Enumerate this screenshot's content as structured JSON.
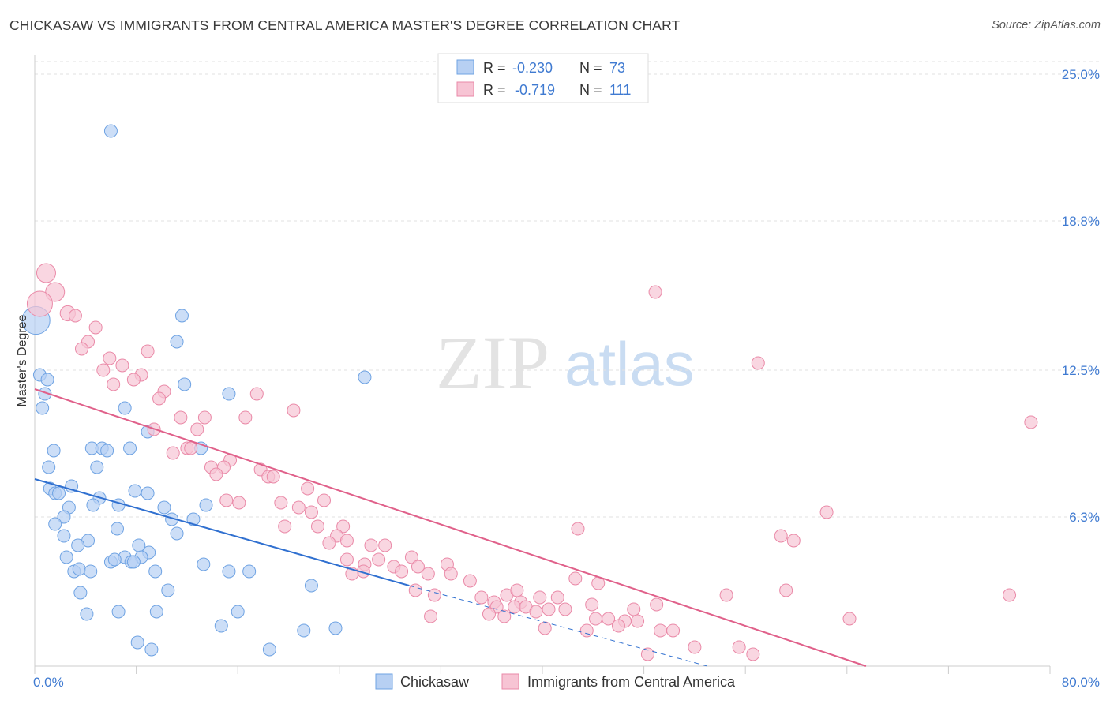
{
  "title": "CHICKASAW VS IMMIGRANTS FROM CENTRAL AMERICA MASTER'S DEGREE CORRELATION CHART",
  "source": "Source: ZipAtlas.com",
  "watermark": {
    "zip": "ZIP",
    "atlas": "atlas"
  },
  "legend": {
    "r_label": "R =",
    "n_label": "N =",
    "entries": [
      {
        "r": "-0.230",
        "n": "73"
      },
      {
        "r": "-0.719",
        "n": "111"
      }
    ]
  },
  "chart_data": {
    "type": "scatter",
    "title": "CHICKASAW VS IMMIGRANTS FROM CENTRAL AMERICA MASTER'S DEGREE CORRELATION CHART",
    "xlabel": "",
    "ylabel": "Master's Degree",
    "xlim": [
      0,
      80
    ],
    "ylim": [
      0,
      25.8
    ],
    "x_tick_labels": [
      "0.0%",
      "80.0%"
    ],
    "y_ticks": [
      6.3,
      12.5,
      18.8,
      25.0
    ],
    "y_tick_labels": [
      "6.3%",
      "12.5%",
      "18.8%",
      "25.0%"
    ],
    "grid": true,
    "legend_position": "top-center",
    "colors": {
      "blue": "#6fa3e3",
      "blue_fill": "#b7d0f3",
      "blue_line": "#3070d0",
      "pink": "#ea8aa8",
      "pink_fill": "#f7c4d4",
      "pink_line": "#e0608a"
    },
    "series": [
      {
        "name": "Chickasaw",
        "color": "#6fa3e3",
        "trend": {
          "x": [
            0,
            29.5
          ],
          "y": [
            7.9,
            3.4
          ],
          "dashed_to": [
            53,
            0
          ]
        },
        "points": [
          [
            0.1,
            14.6,
            2.2
          ],
          [
            6.0,
            22.6,
            1
          ],
          [
            11.6,
            14.8,
            1
          ],
          [
            11.2,
            13.7,
            1
          ],
          [
            0.4,
            12.3,
            1
          ],
          [
            1.0,
            12.1,
            1
          ],
          [
            0.8,
            11.5,
            1
          ],
          [
            26.0,
            12.2,
            1
          ],
          [
            11.8,
            11.9,
            1
          ],
          [
            15.3,
            11.5,
            1
          ],
          [
            0.6,
            10.9,
            1
          ],
          [
            7.1,
            10.9,
            1
          ],
          [
            8.9,
            9.9,
            1
          ],
          [
            1.5,
            9.1,
            1
          ],
          [
            4.5,
            9.2,
            1
          ],
          [
            5.3,
            9.2,
            1
          ],
          [
            5.7,
            9.1,
            1
          ],
          [
            7.5,
            9.2,
            1
          ],
          [
            13.1,
            9.2,
            1
          ],
          [
            1.1,
            8.4,
            1
          ],
          [
            4.9,
            8.4,
            1
          ],
          [
            1.2,
            7.5,
            1
          ],
          [
            1.6,
            7.3,
            1
          ],
          [
            1.9,
            7.3,
            1
          ],
          [
            2.9,
            7.6,
            1
          ],
          [
            7.9,
            7.4,
            1
          ],
          [
            8.9,
            7.3,
            1
          ],
          [
            5.1,
            7.1,
            1
          ],
          [
            4.6,
            6.8,
            1
          ],
          [
            6.6,
            6.8,
            1
          ],
          [
            2.7,
            6.7,
            1
          ],
          [
            13.5,
            6.8,
            1
          ],
          [
            10.2,
            6.7,
            1
          ],
          [
            2.3,
            6.3,
            1
          ],
          [
            1.6,
            6.0,
            1
          ],
          [
            10.8,
            6.2,
            1
          ],
          [
            12.5,
            6.2,
            1
          ],
          [
            6.5,
            5.8,
            1
          ],
          [
            2.3,
            5.5,
            1
          ],
          [
            4.2,
            5.3,
            1
          ],
          [
            8.2,
            5.1,
            1
          ],
          [
            11.2,
            5.6,
            1
          ],
          [
            3.4,
            5.1,
            1
          ],
          [
            9.0,
            4.8,
            1
          ],
          [
            2.5,
            4.6,
            1
          ],
          [
            6.0,
            4.4,
            1
          ],
          [
            7.1,
            4.6,
            1
          ],
          [
            8.4,
            4.6,
            1
          ],
          [
            6.3,
            4.5,
            1
          ],
          [
            7.6,
            4.4,
            1
          ],
          [
            7.8,
            4.4,
            1
          ],
          [
            13.3,
            4.3,
            1
          ],
          [
            3.1,
            4.0,
            1
          ],
          [
            3.5,
            4.1,
            1
          ],
          [
            4.4,
            4.0,
            1
          ],
          [
            9.5,
            4.0,
            1
          ],
          [
            15.3,
            4.0,
            1
          ],
          [
            16.9,
            4.0,
            1
          ],
          [
            21.8,
            3.4,
            1
          ],
          [
            3.6,
            3.1,
            1
          ],
          [
            10.5,
            3.2,
            1
          ],
          [
            6.6,
            2.3,
            1
          ],
          [
            9.6,
            2.3,
            1
          ],
          [
            16.0,
            2.3,
            1
          ],
          [
            4.1,
            2.2,
            1
          ],
          [
            14.7,
            1.7,
            1
          ],
          [
            21.2,
            1.5,
            1
          ],
          [
            23.7,
            1.6,
            1
          ],
          [
            8.1,
            1.0,
            1
          ],
          [
            9.2,
            0.7,
            1
          ],
          [
            18.5,
            0.7,
            1
          ]
        ]
      },
      {
        "name": "Immigrants from Central America",
        "color": "#ea8aa8",
        "trend": {
          "x": [
            0,
            65.5
          ],
          "y": [
            11.7,
            0
          ]
        },
        "points": [
          [
            0.9,
            16.6,
            1.5
          ],
          [
            1.6,
            15.8,
            1.5
          ],
          [
            0.4,
            15.3,
            2
          ],
          [
            2.6,
            14.9,
            1.2
          ],
          [
            3.2,
            14.8,
            1
          ],
          [
            48.9,
            15.8,
            1
          ],
          [
            4.8,
            14.3,
            1
          ],
          [
            4.2,
            13.7,
            1
          ],
          [
            3.7,
            13.4,
            1
          ],
          [
            8.9,
            13.3,
            1
          ],
          [
            5.9,
            13.0,
            1
          ],
          [
            57.0,
            12.8,
            1
          ],
          [
            6.9,
            12.7,
            1
          ],
          [
            5.4,
            12.5,
            1
          ],
          [
            8.4,
            12.3,
            1
          ],
          [
            7.8,
            12.1,
            1
          ],
          [
            6.2,
            11.9,
            1
          ],
          [
            10.2,
            11.6,
            1
          ],
          [
            17.5,
            11.5,
            1
          ],
          [
            9.8,
            11.3,
            1
          ],
          [
            20.4,
            10.8,
            1
          ],
          [
            11.5,
            10.5,
            1
          ],
          [
            13.4,
            10.5,
            1
          ],
          [
            16.6,
            10.5,
            1
          ],
          [
            78.5,
            10.3,
            1
          ],
          [
            9.4,
            10.0,
            1
          ],
          [
            12.8,
            10.0,
            1
          ],
          [
            12.0,
            9.2,
            1
          ],
          [
            12.3,
            9.2,
            1
          ],
          [
            10.9,
            9.0,
            1
          ],
          [
            15.4,
            8.7,
            1
          ],
          [
            13.9,
            8.4,
            1
          ],
          [
            14.9,
            8.4,
            1
          ],
          [
            17.8,
            8.3,
            1
          ],
          [
            18.4,
            8.0,
            1
          ],
          [
            18.8,
            8.0,
            1
          ],
          [
            14.3,
            8.1,
            1
          ],
          [
            21.5,
            7.5,
            1
          ],
          [
            16.1,
            6.9,
            1
          ],
          [
            19.4,
            6.9,
            1
          ],
          [
            15.1,
            7.0,
            1
          ],
          [
            22.8,
            7.0,
            1
          ],
          [
            20.8,
            6.7,
            1
          ],
          [
            21.8,
            6.5,
            1
          ],
          [
            62.4,
            6.5,
            1
          ],
          [
            19.7,
            5.9,
            1
          ],
          [
            22.3,
            5.9,
            1
          ],
          [
            24.3,
            5.9,
            1
          ],
          [
            42.8,
            5.8,
            1
          ],
          [
            23.8,
            5.5,
            1
          ],
          [
            58.8,
            5.5,
            1
          ],
          [
            59.8,
            5.3,
            1
          ],
          [
            24.6,
            5.3,
            1
          ],
          [
            23.2,
            5.2,
            1
          ],
          [
            27.6,
            5.1,
            1
          ],
          [
            26.5,
            5.1,
            1
          ],
          [
            24.6,
            4.5,
            1
          ],
          [
            27.1,
            4.5,
            1
          ],
          [
            29.7,
            4.6,
            1
          ],
          [
            26.0,
            4.3,
            1
          ],
          [
            28.3,
            4.2,
            1
          ],
          [
            30.2,
            4.2,
            1
          ],
          [
            25.9,
            4.0,
            1
          ],
          [
            28.9,
            4.0,
            1
          ],
          [
            32.5,
            4.3,
            1
          ],
          [
            25.0,
            3.9,
            1
          ],
          [
            31.0,
            3.9,
            1
          ],
          [
            32.8,
            3.9,
            1
          ],
          [
            34.3,
            3.6,
            1
          ],
          [
            42.6,
            3.7,
            1
          ],
          [
            44.4,
            3.5,
            1
          ],
          [
            30.0,
            3.2,
            1
          ],
          [
            31.5,
            3.0,
            1
          ],
          [
            35.2,
            2.9,
            1
          ],
          [
            36.2,
            2.7,
            1
          ],
          [
            38.3,
            2.7,
            1
          ],
          [
            37.2,
            3.0,
            1
          ],
          [
            38.0,
            3.2,
            1
          ],
          [
            39.8,
            2.9,
            1
          ],
          [
            41.2,
            2.9,
            1
          ],
          [
            59.2,
            3.2,
            1
          ],
          [
            54.5,
            3.0,
            1
          ],
          [
            76.8,
            3.0,
            1
          ],
          [
            36.4,
            2.5,
            1
          ],
          [
            37.8,
            2.5,
            1
          ],
          [
            38.7,
            2.5,
            1
          ],
          [
            39.5,
            2.3,
            1
          ],
          [
            40.5,
            2.4,
            1
          ],
          [
            41.8,
            2.4,
            1
          ],
          [
            43.9,
            2.6,
            1
          ],
          [
            47.2,
            2.4,
            1
          ],
          [
            49.0,
            2.6,
            1
          ],
          [
            35.8,
            2.2,
            1
          ],
          [
            37.0,
            2.1,
            1
          ],
          [
            31.2,
            2.1,
            1
          ],
          [
            44.2,
            2.0,
            1
          ],
          [
            45.2,
            2.0,
            1
          ],
          [
            46.5,
            1.9,
            1
          ],
          [
            47.5,
            1.9,
            1
          ],
          [
            46.0,
            1.7,
            1
          ],
          [
            64.2,
            2.0,
            1
          ],
          [
            40.2,
            1.6,
            1
          ],
          [
            43.5,
            1.5,
            1
          ],
          [
            49.3,
            1.5,
            1
          ],
          [
            50.3,
            1.5,
            1
          ],
          [
            52.0,
            0.8,
            1
          ],
          [
            55.5,
            0.8,
            1
          ],
          [
            48.3,
            0.5,
            1
          ],
          [
            56.6,
            0.5,
            1
          ]
        ]
      }
    ]
  },
  "bottom_legend": [
    {
      "label": "Chickasaw"
    },
    {
      "label": "Immigrants from Central America"
    }
  ]
}
